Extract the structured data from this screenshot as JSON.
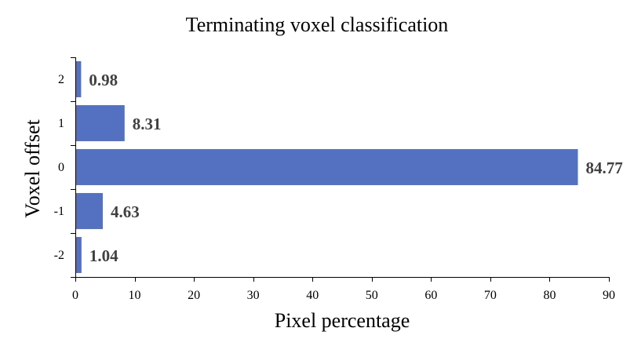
{
  "chart_data": {
    "type": "bar",
    "orientation": "horizontal",
    "title": "Terminating voxel classification",
    "xlabel": "Pixel percentage",
    "ylabel": "Voxel offset",
    "categories": [
      "2",
      "1",
      "0",
      "-1",
      "-2"
    ],
    "values": [
      0.98,
      8.31,
      84.77,
      4.63,
      1.04
    ],
    "data_labels": [
      "0.98",
      "8.31",
      "84.77",
      "4.63",
      "1.04"
    ],
    "xlim": [
      0,
      90
    ],
    "xticks": [
      "0",
      "10",
      "20",
      "30",
      "40",
      "50",
      "60",
      "70",
      "80",
      "90"
    ],
    "grid": false,
    "legend": "none",
    "bar_color": "#5470C1",
    "data_label_color": "#404040"
  }
}
